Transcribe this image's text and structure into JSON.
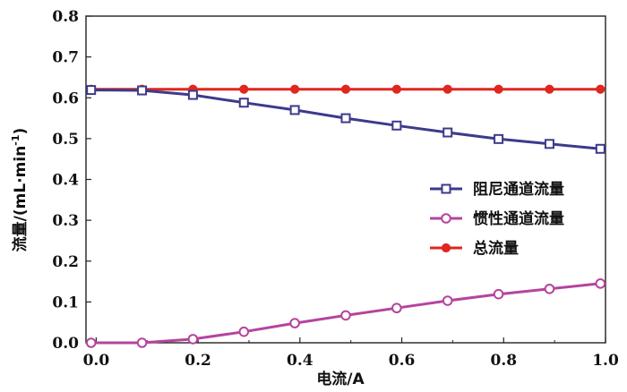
{
  "chart_data": {
    "type": "line",
    "title": "",
    "xlabel": "电流/A",
    "ylabel_main": "流量/(mL·min",
    "ylabel_sup": "-1",
    "ylabel_close": ")",
    "xlim": [
      -0.02,
      1.0
    ],
    "ylim": [
      0.0,
      0.8
    ],
    "x_ticks": [
      "0.0",
      "0.2",
      "0.4",
      "0.6",
      "0.8",
      "1.0"
    ],
    "y_ticks": [
      "0.0",
      "0.1",
      "0.2",
      "0.3",
      "0.4",
      "0.5",
      "0.6",
      "0.7",
      "0.8"
    ],
    "grid": false,
    "legend_position": "right",
    "x": [
      -0.01,
      0.09,
      0.19,
      0.29,
      0.39,
      0.49,
      0.59,
      0.69,
      0.79,
      0.89,
      0.99
    ],
    "series": [
      {
        "name": "阻尼通道流量",
        "color": "#3d3a8c",
        "marker": "square",
        "values": [
          0.619,
          0.618,
          0.607,
          0.588,
          0.57,
          0.55,
          0.532,
          0.515,
          0.499,
          0.487,
          0.475
        ]
      },
      {
        "name": "惯性通道流量",
        "color": "#b5449e",
        "marker": "circle",
        "values": [
          0.0,
          0.0,
          0.009,
          0.027,
          0.048,
          0.067,
          0.085,
          0.103,
          0.119,
          0.132,
          0.145
        ]
      },
      {
        "name": "总流量",
        "color": "#e0261f",
        "marker": "dot",
        "values": [
          0.621,
          0.621,
          0.621,
          0.621,
          0.621,
          0.621,
          0.621,
          0.621,
          0.621,
          0.621,
          0.621
        ]
      }
    ]
  }
}
